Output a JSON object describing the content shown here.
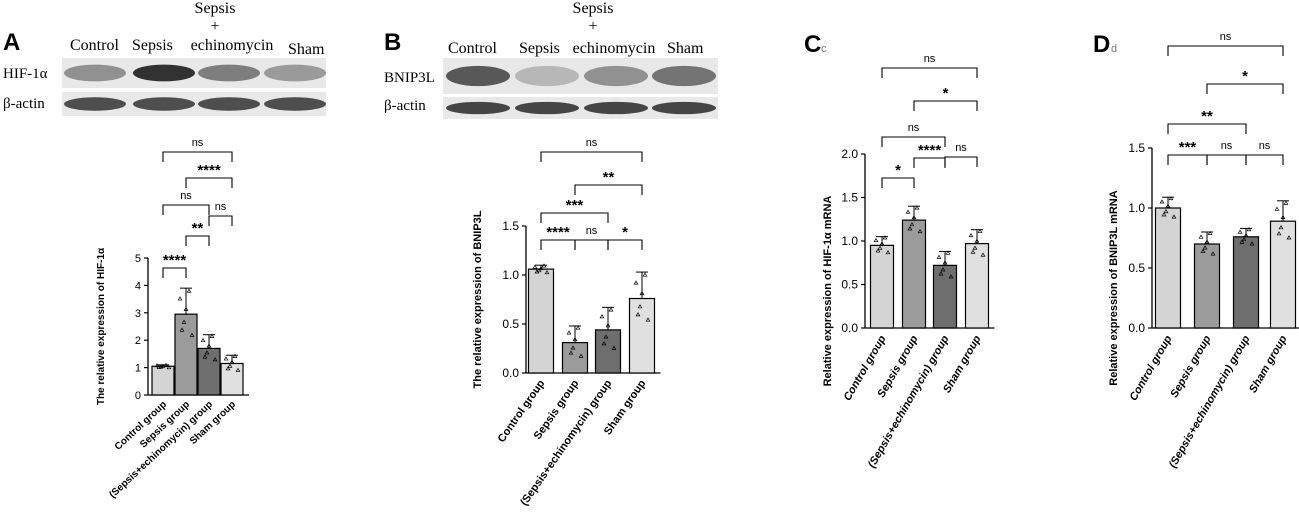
{
  "panels": [
    {
      "letter": "A",
      "blot": {
        "lanes": [
          "Control",
          "Sepsis",
          "Sepsis",
          "+",
          "echinomycin",
          "Sham"
        ],
        "rows": [
          "HIF-1α",
          "β-actin"
        ],
        "target_intensity": [
          0.45,
          0.95,
          0.55,
          0.4
        ],
        "actin_intensity": [
          0.8,
          0.8,
          0.8,
          0.8
        ]
      }
    },
    {
      "letter": "B",
      "blot": {
        "lanes": [
          "Control",
          "Sepsis",
          "Sepsis",
          "+",
          "echinomycin",
          "Sham"
        ],
        "rows": [
          "BNIP3L",
          "β-actin"
        ],
        "target_intensity": [
          0.75,
          0.25,
          0.45,
          0.6
        ],
        "actin_intensity": [
          0.85,
          0.85,
          0.85,
          0.85
        ]
      }
    },
    {
      "letter": "C",
      "sub": "c"
    },
    {
      "letter": "D",
      "sub": "d"
    }
  ],
  "colors": {
    "bar_light": "#d4d4d4",
    "bar_mid": "#9b9b9b",
    "bar_dark": "#6e6e6e",
    "bar_pale": "#e0e0e0",
    "ink": "#000000"
  },
  "chart_data": [
    {
      "panel": "A",
      "type": "bar",
      "categories": [
        "Control group",
        "Sepsis group",
        "(Sepsis+echinomycin) group",
        "Sham group"
      ],
      "values": [
        1.05,
        2.95,
        1.7,
        1.15
      ],
      "errors": [
        0.05,
        0.95,
        0.5,
        0.3
      ],
      "ylabel": "The relative expression of HIF-1α",
      "ylim": [
        0,
        5
      ],
      "yticks": [
        "0",
        "1",
        "2",
        "3",
        "4",
        "5"
      ],
      "comparisons": [
        {
          "a": 0,
          "b": 1,
          "label": "****"
        },
        {
          "a": 1,
          "b": 2,
          "label": "**"
        },
        {
          "a": 2,
          "b": 3,
          "label": "ns"
        },
        {
          "a": 0,
          "b": 2,
          "label": "ns"
        },
        {
          "a": 1,
          "b": 3,
          "label": "****"
        },
        {
          "a": 0,
          "b": 3,
          "label": "ns"
        }
      ]
    },
    {
      "panel": "B",
      "type": "bar",
      "categories": [
        "Control group",
        "Sepsis group",
        "(Sepsis+echinomycin) group",
        "Sham group"
      ],
      "values": [
        1.06,
        0.31,
        0.44,
        0.76
      ],
      "errors": [
        0.04,
        0.17,
        0.23,
        0.27
      ],
      "ylabel": "The relative expression of BNIP3L",
      "ylim": [
        0,
        1.5
      ],
      "yticks": [
        "0.0",
        "0.5",
        "1.0",
        "1.5"
      ],
      "comparisons": [
        {
          "a": 0,
          "b": 1,
          "label": "****"
        },
        {
          "a": 1,
          "b": 2,
          "label": "ns"
        },
        {
          "a": 2,
          "b": 3,
          "label": "*"
        },
        {
          "a": 0,
          "b": 2,
          "label": "***"
        },
        {
          "a": 1,
          "b": 3,
          "label": "**"
        },
        {
          "a": 0,
          "b": 3,
          "label": "ns"
        }
      ]
    },
    {
      "panel": "C",
      "type": "bar",
      "categories": [
        "Control group",
        "Sepsis group",
        "(Sepsis+echinomycin) group",
        "Sham group"
      ],
      "values": [
        0.95,
        1.24,
        0.72,
        0.97
      ],
      "errors": [
        0.1,
        0.16,
        0.16,
        0.16
      ],
      "ylabel": "Relative expression of HIF-1α mRNA",
      "ylim": [
        0,
        2.0
      ],
      "yticks": [
        "0.0",
        "0.5",
        "1.0",
        "1.5",
        "2.0"
      ],
      "comparisons": [
        {
          "a": 0,
          "b": 1,
          "label": "*"
        },
        {
          "a": 1,
          "b": 2,
          "label": "****"
        },
        {
          "a": 2,
          "b": 3,
          "label": "ns"
        },
        {
          "a": 0,
          "b": 2,
          "label": "ns"
        },
        {
          "a": 1,
          "b": 3,
          "label": "*"
        },
        {
          "a": 0,
          "b": 3,
          "label": "ns"
        }
      ]
    },
    {
      "panel": "D",
      "type": "bar",
      "categories": [
        "Control group",
        "Sepsis group",
        "(Sepsis+echinomycin) group",
        "Sham group"
      ],
      "values": [
        1.0,
        0.7,
        0.76,
        0.89
      ],
      "errors": [
        0.09,
        0.1,
        0.07,
        0.17
      ],
      "ylabel": "Relative expression of BNIP3L mRNA",
      "ylim": [
        0,
        1.5
      ],
      "yticks": [
        "0.0",
        "0.5",
        "1.0",
        "1.5"
      ],
      "comparisons": [
        {
          "a": 0,
          "b": 1,
          "label": "***"
        },
        {
          "a": 1,
          "b": 2,
          "label": "ns"
        },
        {
          "a": 2,
          "b": 3,
          "label": "ns"
        },
        {
          "a": 0,
          "b": 2,
          "label": "**"
        },
        {
          "a": 1,
          "b": 3,
          "label": "*"
        },
        {
          "a": 0,
          "b": 3,
          "label": "ns"
        }
      ]
    }
  ]
}
